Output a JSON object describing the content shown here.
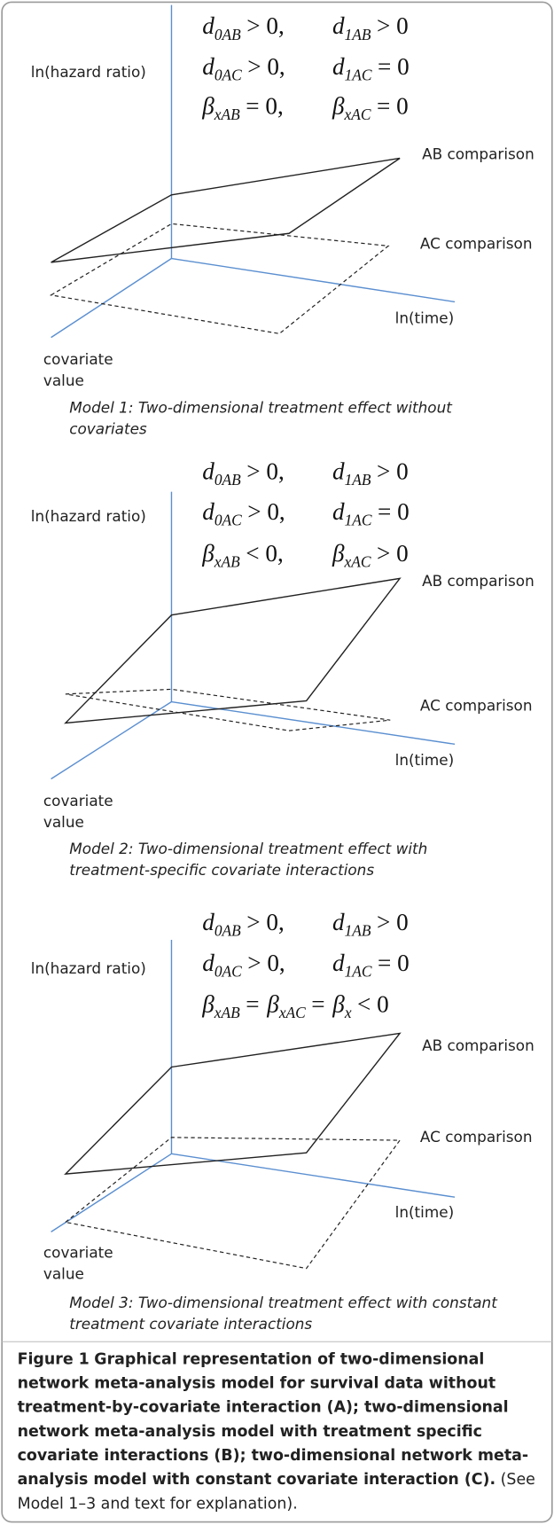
{
  "panels": [
    {
      "equations": [
        [
          {
            "symbol": "d",
            "subscript": "0AB",
            "relation": "> 0,"
          },
          {
            "symbol": "d",
            "subscript": "1AB",
            "relation": "> 0"
          }
        ],
        [
          {
            "symbol": "d",
            "subscript": "0AC",
            "relation": "> 0,"
          },
          {
            "symbol": "d",
            "subscript": "1AC",
            "relation": "= 0"
          }
        ],
        [
          {
            "symbol": "β",
            "subscript": "xAB",
            "relation": "= 0,"
          },
          {
            "symbol": "β",
            "subscript": "xAC",
            "relation": "= 0"
          }
        ]
      ],
      "y_axis_label": "ln(hazard ratio)",
      "x_axis_label": "ln(time)",
      "z_axis_label": [
        "covariate",
        "value"
      ],
      "plane_labels": [
        "AB comparison",
        "AC comparison"
      ],
      "caption": [
        "Model 1: Two-dimensional treatment effect without",
        "covariates"
      ]
    },
    {
      "equations": [
        [
          {
            "symbol": "d",
            "subscript": "0AB",
            "relation": "> 0,"
          },
          {
            "symbol": "d",
            "subscript": "1AB",
            "relation": "> 0"
          }
        ],
        [
          {
            "symbol": "d",
            "subscript": "0AC",
            "relation": "> 0,"
          },
          {
            "symbol": "d",
            "subscript": "1AC",
            "relation": "= 0"
          }
        ],
        [
          {
            "symbol": "β",
            "subscript": "xAB",
            "relation": "< 0,"
          },
          {
            "symbol": "β",
            "subscript": "xAC",
            "relation": "> 0"
          }
        ]
      ],
      "y_axis_label": "ln(hazard ratio)",
      "x_axis_label": "ln(time)",
      "z_axis_label": [
        "covariate",
        "value"
      ],
      "plane_labels": [
        "AB comparison",
        "AC comparison"
      ],
      "caption": [
        "Model 2: Two-dimensional treatment effect with",
        "treatment-specific covariate interactions"
      ]
    },
    {
      "equations": [
        [
          {
            "symbol": "d",
            "subscript": "0AB",
            "relation": "> 0,"
          },
          {
            "symbol": "d",
            "subscript": "1AB",
            "relation": "> 0"
          }
        ],
        [
          {
            "symbol": "d",
            "subscript": "0AC",
            "relation": "> 0,"
          },
          {
            "symbol": "d",
            "subscript": "1AC",
            "relation": "= 0"
          }
        ],
        [
          {
            "symbol": "β",
            "subscript": "xAB",
            "relation": "="
          },
          {
            "symbol": "β",
            "subscript": "xAC",
            "relation": "="
          },
          {
            "symbol": "β",
            "subscript": "x",
            "relation": "< 0"
          }
        ]
      ],
      "y_axis_label": "ln(hazard ratio)",
      "x_axis_label": "ln(time)",
      "z_axis_label": [
        "covariate",
        "value"
      ],
      "plane_labels": [
        "AB comparison",
        "AC comparison"
      ],
      "caption": [
        "Model 3: Two-dimensional treatment effect with constant",
        "treatment covariate interactions"
      ]
    }
  ],
  "figure_caption": {
    "label": "Figure 1",
    "bold_text": "Graphical representation of two-dimensional network meta-analysis model for survival data without treatment-by-covariate interaction (A); two-dimensional network meta-analysis model with treatment specific covariate interactions (B); two-dimensional network meta-analysis model with constant covariate interaction (C).",
    "text": "(See Model 1–3 and text for explanation)."
  }
}
